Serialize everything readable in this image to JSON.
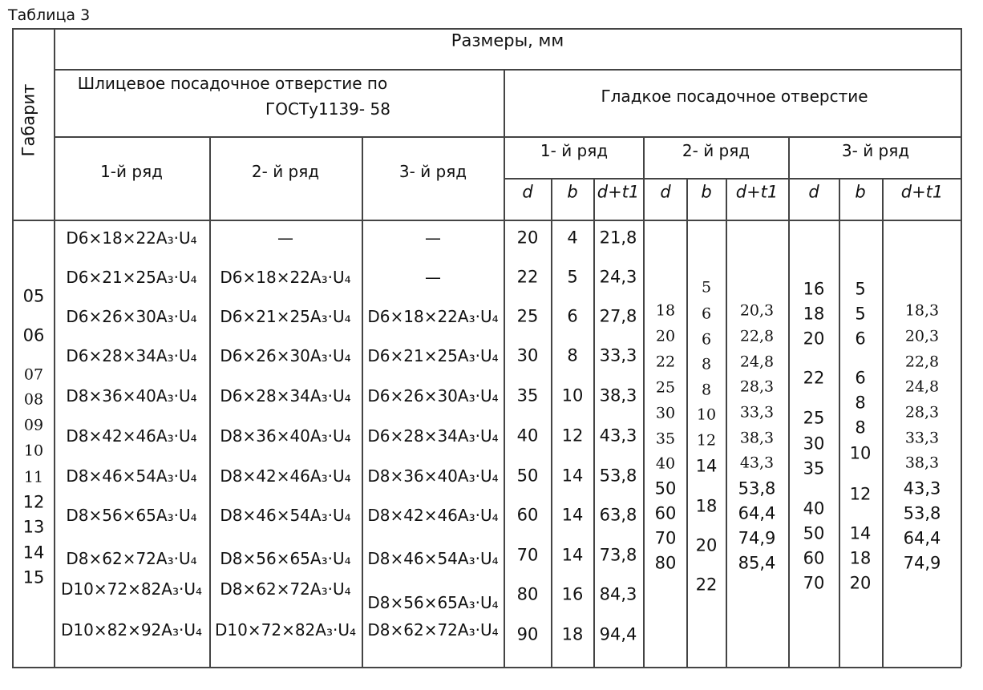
{
  "caption": "Таблица 3",
  "header": {
    "gabarit": "Габарит",
    "sizes": "Размеры, мм",
    "spline_line1": "Шлицевое посадочное отверстие по",
    "spline_line2": "ГОСТу1139- 58",
    "smooth": "Гладкое посадочное отверстие",
    "spline_rows": [
      "1-й ряд",
      "2- й ряд",
      "3- й ряд"
    ],
    "smooth_rows": [
      "1- й ряд",
      "2- й ряд",
      "3- й ряд"
    ],
    "sub": [
      "d",
      "b",
      "d+t1"
    ]
  },
  "gabarit": [
    "05",
    "06",
    "07",
    "08",
    "09",
    "10",
    "11",
    "12",
    "13",
    "14",
    "15"
  ],
  "spline": {
    "row1": [
      "D6×18×22A₃·U₄",
      "D6×21×25A₃·U₄",
      "D6×26×30A₃·U₄",
      "D6×28×34A₃·U₄",
      "D8×36×40A₃·U₄",
      "D8×42×46A₃·U₄",
      "D8×46×54A₃·U₄",
      "D8×56×65A₃·U₄",
      "D8×62×72A₃·U₄",
      "D10×72×82A₃·U₄",
      "D10×82×92A₃·U₄"
    ],
    "row2": [
      "—",
      "D6×18×22A₃·U₄",
      "D6×21×25A₃·U₄",
      "D6×26×30A₃·U₄",
      "D6×28×34A₃·U₄",
      "D8×36×40A₃·U₄",
      "D8×42×46A₃·U₄",
      "D8×46×54A₃·U₄",
      "D8×56×65A₃·U₄",
      "D8×62×72A₃·U₄",
      "D10×72×82A₃·U₄"
    ],
    "row3": [
      "—",
      "—",
      "D6×18×22A₃·U₄",
      "D6×21×25A₃·U₄",
      "D6×26×30A₃·U₄",
      "D6×28×34A₃·U₄",
      "D8×36×40A₃·U₄",
      "D8×42×46A₃·U₄",
      "D8×46×54A₃·U₄",
      "D8×56×65A₃·U₄",
      "D8×62×72A₃·U₄"
    ]
  },
  "smooth": {
    "row1": {
      "d": [
        "20",
        "22",
        "25",
        "30",
        "35",
        "40",
        "50",
        "60",
        "70",
        "80",
        "90"
      ],
      "b": [
        "4",
        "5",
        "6",
        "8",
        "10",
        "12",
        "14",
        "14",
        "14",
        "16",
        "18"
      ],
      "dt": [
        "21,8",
        "24,3",
        "27,8",
        "33,3",
        "38,3",
        "43,3",
        "53,8",
        "63,8",
        "73,8",
        "84,3",
        "94,4"
      ]
    },
    "row2": {
      "d": [
        "18",
        "20",
        "22",
        "25",
        "30",
        "35",
        "40",
        "50",
        "60",
        "70",
        "80"
      ],
      "b": [
        "5",
        "6",
        "6",
        "8",
        "8",
        "10",
        "12",
        "14",
        "18",
        "20",
        "22"
      ],
      "dt": [
        "20,3",
        "22,8",
        "24,8",
        "28,3",
        "33,3",
        "38,3",
        "43,3",
        "53,8",
        "64,4",
        "74,9",
        "85,4"
      ]
    },
    "row3": {
      "d": [
        "16",
        "18",
        "20",
        "22",
        "25",
        "30",
        "35",
        "40",
        "50",
        "60",
        "70"
      ],
      "b": [
        "5",
        "5",
        "6",
        "6",
        "8",
        "8",
        "10",
        "12",
        "14",
        "18",
        "20"
      ],
      "dt": [
        "18,3",
        "20,3",
        "22,8",
        "24,8",
        "28,3",
        "33,3",
        "38,3",
        "43,3",
        "53,8",
        "64,4",
        "74,9"
      ]
    }
  }
}
